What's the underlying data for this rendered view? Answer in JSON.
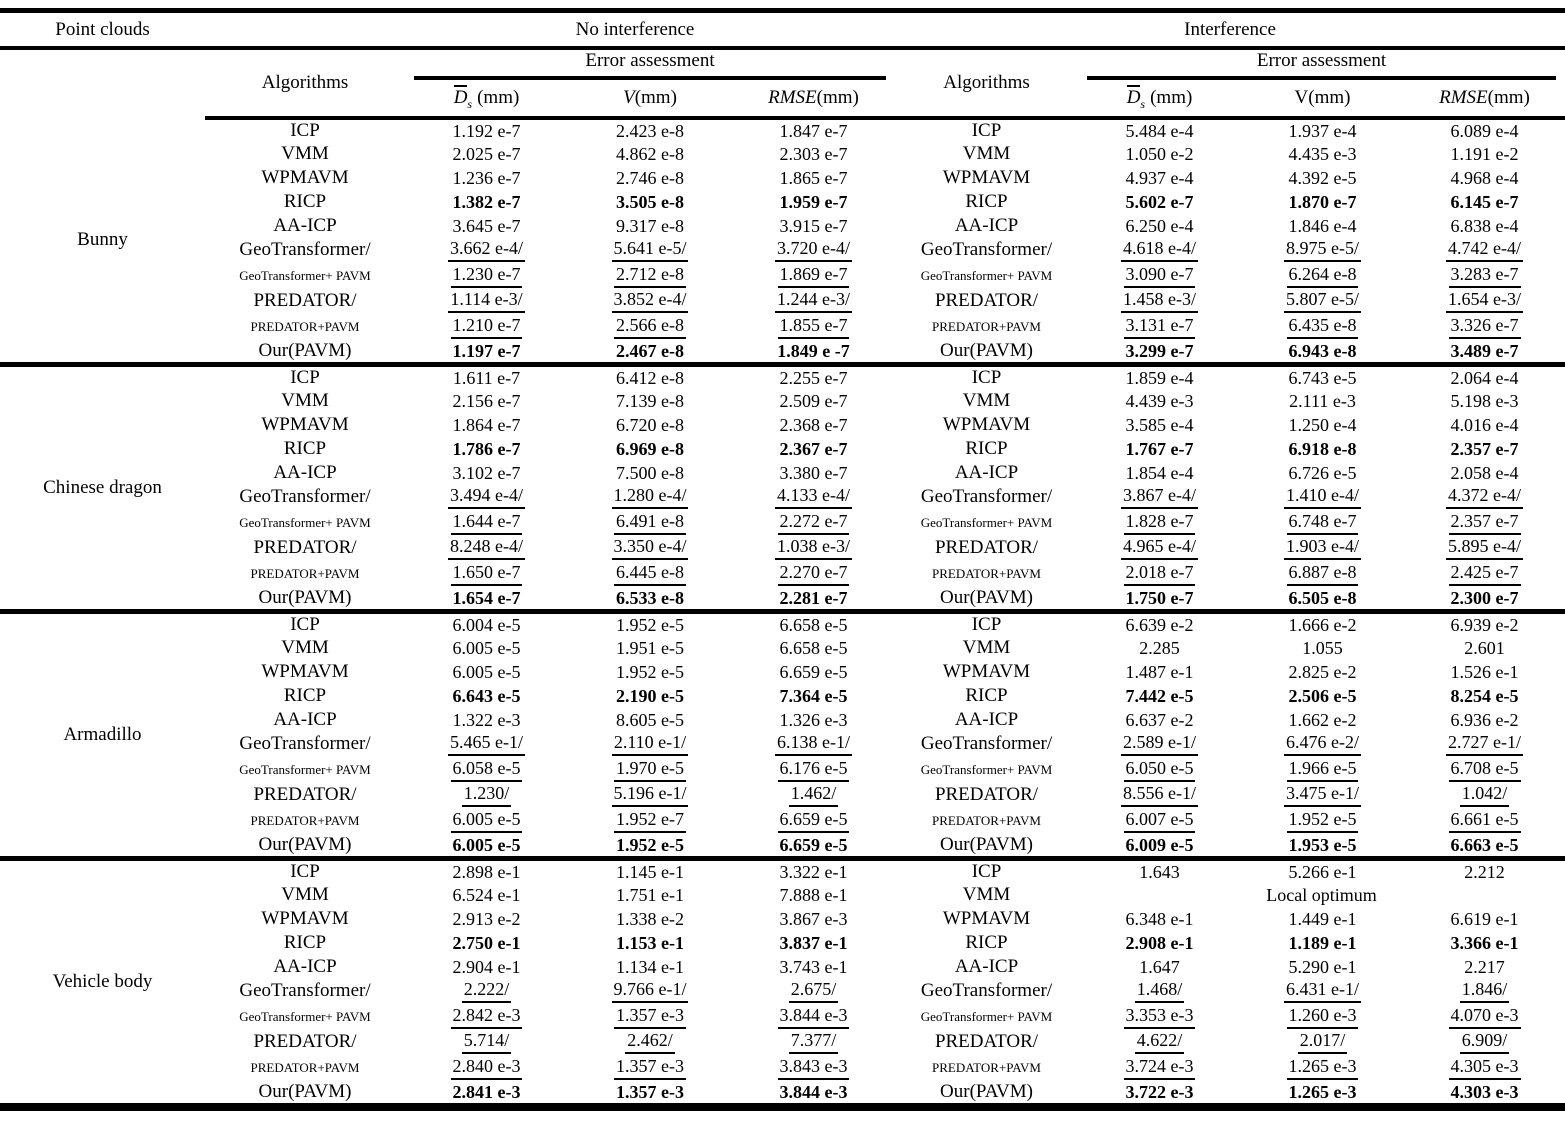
{
  "table": {
    "header": {
      "point_clouds": "Point clouds",
      "no_interference": "No interference",
      "interference": "Interference",
      "algorithms": "Algorithms",
      "error_assessment": "Error assessment",
      "ds_d": "D",
      "ds_sub": "s",
      "ds_unit": "(mm)",
      "v": "V",
      "v_unit": "(mm)",
      "rmse": "RMSE",
      "rmse_unit": "(mm)"
    },
    "sections": [
      {
        "point_cloud": "Bunny",
        "rows": [
          {
            "alg": "ICP",
            "style": "normal",
            "left": [
              "1.192 e-7",
              "2.423 e-8",
              "1.847 e-7"
            ],
            "right": [
              "5.484 e-4",
              "1.937 e-4",
              "6.089 e-4"
            ]
          },
          {
            "alg": "VMM",
            "style": "normal",
            "left": [
              "2.025 e-7",
              "4.862 e-8",
              "2.303 e-7"
            ],
            "right": [
              "1.050 e-2",
              "4.435 e-3",
              "1.191 e-2"
            ]
          },
          {
            "alg": "WPMAVM",
            "style": "normal",
            "left": [
              "1.236 e-7",
              "2.746 e-8",
              "1.865 e-7"
            ],
            "right": [
              "4.937 e-4",
              "4.392 e-5",
              "4.968 e-4"
            ]
          },
          {
            "alg": "RICP",
            "style": "bold",
            "left": [
              "1.382 e-7",
              "3.505 e-8",
              "1.959 e-7"
            ],
            "right": [
              "5.602 e-7",
              "1.870 e-7",
              "6.145 e-7"
            ]
          },
          {
            "alg": "AA-ICP",
            "style": "normal",
            "left": [
              "3.645 e-7",
              "9.317 e-8",
              "3.915 e-7"
            ],
            "right": [
              "6.250 e-4",
              "1.846 e-4",
              "6.838 e-4"
            ]
          },
          {
            "alg": "GeoTransformer/",
            "style": "underlined",
            "left": [
              "3.662 e-4/",
              "5.641 e-5/",
              "3.720 e-4/"
            ],
            "right": [
              "4.618 e-4/",
              "8.975 e-5/",
              "4.742 e-4/"
            ]
          },
          {
            "alg": "GeoTransformer+ PAVM",
            "style": "underlined",
            "small_label": true,
            "left": [
              "1.230 e-7",
              "2.712 e-8",
              "1.869 e-7"
            ],
            "right": [
              "3.090 e-7",
              "6.264 e-8",
              "3.283 e-7"
            ]
          },
          {
            "alg": "PREDATOR/",
            "style": "underlined",
            "left": [
              "1.114 e-3/",
              "3.852 e-4/",
              "1.244 e-3/"
            ],
            "right": [
              "1.458 e-3/",
              "5.807 e-5/",
              "1.654 e-3/"
            ]
          },
          {
            "alg": "PREDATOR+PAVM",
            "style": "underlined",
            "small_label": true,
            "left": [
              "1.210 e-7",
              "2.566 e-8",
              "1.855 e-7"
            ],
            "right": [
              "3.131 e-7",
              "6.435 e-8",
              "3.326 e-7"
            ]
          },
          {
            "alg": "Our(PAVM)",
            "style": "bold",
            "left": [
              "1.197 e-7",
              "2.467 e-8",
              "1.849 e -7"
            ],
            "right": [
              "3.299 e-7",
              "6.943 e-8",
              "3.489 e-7"
            ]
          }
        ]
      },
      {
        "point_cloud": "Chinese dragon",
        "rows": [
          {
            "alg": "ICP",
            "style": "normal",
            "left": [
              "1.611 e-7",
              "6.412 e-8",
              "2.255 e-7"
            ],
            "right": [
              "1.859 e-4",
              "6.743 e-5",
              "2.064 e-4"
            ]
          },
          {
            "alg": "VMM",
            "style": "normal",
            "left": [
              "2.156 e-7",
              "7.139 e-8",
              "2.509 e-7"
            ],
            "right": [
              "4.439 e-3",
              "2.111 e-3",
              "5.198 e-3"
            ]
          },
          {
            "alg": "WPMAVM",
            "style": "normal",
            "left": [
              "1.864 e-7",
              "6.720 e-8",
              "2.368 e-7"
            ],
            "right": [
              "3.585 e-4",
              "1.250 e-4",
              "4.016 e-4"
            ]
          },
          {
            "alg": "RICP",
            "style": "bold",
            "left": [
              "1.786 e-7",
              "6.969 e-8",
              "2.367 e-7"
            ],
            "right": [
              "1.767 e-7",
              "6.918 e-8",
              "2.357 e-7"
            ]
          },
          {
            "alg": "AA-ICP",
            "style": "normal",
            "left": [
              "3.102 e-7",
              "7.500 e-8",
              "3.380 e-7"
            ],
            "right": [
              "1.854 e-4",
              "6.726 e-5",
              "2.058 e-4"
            ]
          },
          {
            "alg": "GeoTransformer/",
            "style": "underlined",
            "left": [
              "3.494 e-4/",
              "1.280 e-4/",
              "4.133 e-4/"
            ],
            "right": [
              "3.867 e-4/",
              "1.410 e-4/",
              "4.372 e-4/"
            ]
          },
          {
            "alg": "GeoTransformer+ PAVM",
            "style": "underlined",
            "small_label": true,
            "left": [
              "1.644 e-7",
              "6.491 e-8",
              "2.272 e-7"
            ],
            "right": [
              "1.828 e-7",
              "6.748 e-7",
              "2.357 e-7"
            ]
          },
          {
            "alg": "PREDATOR/",
            "style": "underlined",
            "left": [
              "8.248 e-4/",
              "3.350 e-4/",
              "1.038 e-3/"
            ],
            "right": [
              "4.965 e-4/",
              "1.903 e-4/",
              "5.895 e-4/"
            ]
          },
          {
            "alg": "PREDATOR+PAVM",
            "style": "underlined",
            "small_label": true,
            "left": [
              "1.650 e-7",
              "6.445 e-8",
              "2.270 e-7"
            ],
            "right": [
              "2.018 e-7",
              "6.887 e-8",
              "2.425 e-7"
            ]
          },
          {
            "alg": "Our(PAVM)",
            "style": "bold",
            "left": [
              "1.654 e-7",
              "6.533 e-8",
              "2.281 e-7"
            ],
            "right": [
              "1.750 e-7",
              "6.505 e-8",
              "2.300 e-7"
            ]
          }
        ]
      },
      {
        "point_cloud": "Armadillo",
        "rows": [
          {
            "alg": "ICP",
            "style": "normal",
            "left": [
              "6.004 e-5",
              "1.952 e-5",
              "6.658 e-5"
            ],
            "right": [
              "6.639 e-2",
              "1.666 e-2",
              "6.939 e-2"
            ]
          },
          {
            "alg": "VMM",
            "style": "normal",
            "left": [
              "6.005 e-5",
              "1.951 e-5",
              "6.658 e-5"
            ],
            "right": [
              "2.285",
              "1.055",
              "2.601"
            ]
          },
          {
            "alg": "WPMAVM",
            "style": "normal",
            "left": [
              "6.005 e-5",
              "1.952 e-5",
              "6.659 e-5"
            ],
            "right": [
              "1.487 e-1",
              "2.825 e-2",
              "1.526 e-1"
            ]
          },
          {
            "alg": "RICP",
            "style": "bold",
            "left": [
              "6.643 e-5",
              "2.190 e-5",
              "7.364 e-5"
            ],
            "right": [
              "7.442 e-5",
              "2.506 e-5",
              "8.254 e-5"
            ]
          },
          {
            "alg": "AA-ICP",
            "style": "normal",
            "left": [
              "1.322 e-3",
              "8.605 e-5",
              "1.326 e-3"
            ],
            "right": [
              "6.637 e-2",
              "1.662 e-2",
              "6.936 e-2"
            ]
          },
          {
            "alg": "GeoTransformer/",
            "style": "underlined",
            "left": [
              "5.465 e-1/",
              "2.110 e-1/",
              "6.138 e-1/"
            ],
            "right": [
              "2.589 e-1/",
              "6.476 e-2/",
              "2.727 e-1/"
            ]
          },
          {
            "alg": "GeoTransformer+ PAVM",
            "style": "underlined",
            "small_label": true,
            "left": [
              "6.058 e-5",
              "1.970 e-5",
              "6.176 e-5"
            ],
            "right": [
              "6.050 e-5",
              "1.966 e-5",
              "6.708 e-5"
            ]
          },
          {
            "alg": "PREDATOR/",
            "style": "underlined",
            "left": [
              "1.230/",
              "5.196 e-1/",
              "1.462/"
            ],
            "right": [
              "8.556 e-1/",
              "3.475 e-1/",
              "1.042/"
            ]
          },
          {
            "alg": "PREDATOR+PAVM",
            "style": "underlined",
            "small_label": true,
            "left": [
              "6.005 e-5",
              "1.952 e-7",
              "6.659 e-5"
            ],
            "right": [
              "6.007 e-5",
              "1.952 e-5",
              "6.661 e-5"
            ]
          },
          {
            "alg": "Our(PAVM)",
            "style": "bold",
            "left": [
              "6.005 e-5",
              "1.952 e-5",
              "6.659 e-5"
            ],
            "right": [
              "6.009 e-5",
              "1.953 e-5",
              "6.663 e-5"
            ]
          }
        ]
      },
      {
        "point_cloud": "Vehicle body",
        "rows": [
          {
            "alg": "ICP",
            "style": "normal",
            "left": [
              "2.898 e-1",
              "1.145 e-1",
              "3.322 e-1"
            ],
            "right": [
              "1.643",
              "5.266 e-1",
              "2.212"
            ]
          },
          {
            "alg": "VMM",
            "style": "normal",
            "left": [
              "6.524 e-1",
              "1.751 e-1",
              "7.888 e-1"
            ],
            "right_merged": "Local optimum"
          },
          {
            "alg": "WPMAVM",
            "style": "normal",
            "left": [
              "2.913 e-2",
              "1.338 e-2",
              "3.867 e-3"
            ],
            "right": [
              "6.348 e-1",
              "1.449 e-1",
              "6.619 e-1"
            ]
          },
          {
            "alg": "RICP",
            "style": "bold",
            "left": [
              "2.750 e-1",
              "1.153 e-1",
              "3.837 e-1"
            ],
            "right": [
              "2.908 e-1",
              "1.189 e-1",
              "3.366 e-1"
            ]
          },
          {
            "alg": "AA-ICP",
            "style": "normal",
            "left": [
              "2.904 e-1",
              "1.134 e-1",
              "3.743 e-1"
            ],
            "right": [
              "1.647",
              "5.290 e-1",
              "2.217"
            ]
          },
          {
            "alg": "GeoTransformer/",
            "style": "underlined",
            "left": [
              "2.222/",
              "9.766 e-1/",
              "2.675/"
            ],
            "right": [
              "1.468/",
              "6.431 e-1/",
              "1.846/"
            ]
          },
          {
            "alg": "GeoTransformer+ PAVM",
            "style": "underlined",
            "small_label": true,
            "left": [
              "2.842 e-3",
              "1.357 e-3",
              "3.844 e-3"
            ],
            "right": [
              "3.353 e-3",
              "1.260 e-3",
              "4.070 e-3"
            ]
          },
          {
            "alg": "PREDATOR/",
            "style": "underlined",
            "left": [
              "5.714/",
              "2.462/",
              "7.377/"
            ],
            "right": [
              "4.622/",
              "2.017/",
              "6.909/"
            ]
          },
          {
            "alg": "PREDATOR+PAVM",
            "style": "underlined",
            "small_label": true,
            "left": [
              "2.840 e-3",
              "1.357 e-3",
              "3.843 e-3"
            ],
            "right": [
              "3.724 e-3",
              "1.265 e-3",
              "4.305 e-3"
            ]
          },
          {
            "alg": "Our(PAVM)",
            "style": "bold",
            "left": [
              "2.841 e-3",
              "1.357 e-3",
              "3.844 e-3"
            ],
            "right": [
              "3.722 e-3",
              "1.265 e-3",
              "4.303 e-3"
            ]
          }
        ]
      }
    ]
  }
}
